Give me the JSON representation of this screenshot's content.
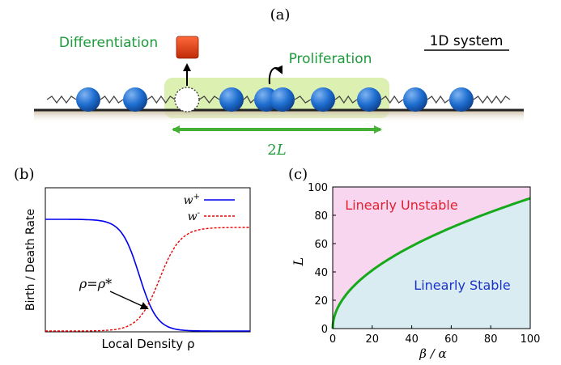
{
  "panel_a": {
    "label": "(a)",
    "differentiation_label": "Differentiation",
    "proliferation_label": "Proliferation",
    "system_label": "1D system",
    "length_label": "2L",
    "colors": {
      "cell": "#1f6fd1",
      "green_text": "#1e9b3c",
      "arrow": "#45b035",
      "highlight": "#d8f0a8",
      "diff_cell": "#d23c10"
    }
  },
  "panel_b": {
    "label": "(b)",
    "ylabel": "Birth / Death Rate",
    "xlabel": "Local Density ρ",
    "legend": {
      "birth": "w+",
      "death": "w-"
    },
    "annotation": "ρ=ρ*",
    "colors": {
      "birth": "#0000ee",
      "death": "#ee0000"
    }
  },
  "panel_c": {
    "label": "(c)",
    "ylabel": "L",
    "xlabel": "β / α",
    "region_unstable": "Linearly Unstable",
    "region_stable": "Linearly Stable",
    "colors": {
      "unstable_bg": "#f9d6f0",
      "stable_bg": "#d8ecf1",
      "curve": "#16a91a",
      "unstable_text": "#e0212f",
      "stable_text": "#1c33c9"
    }
  },
  "chart_data": [
    {
      "type": "line",
      "title": "",
      "xlabel": "Local Density ρ",
      "ylabel": "Birth / Death Rate",
      "ticks": "none",
      "series": [
        {
          "name": "w+",
          "style": "solid",
          "shape": "decreasing sigmoid",
          "high": 1.0,
          "low": 0.0
        },
        {
          "name": "w-",
          "style": "dashed",
          "shape": "increasing sigmoid",
          "high": 0.93,
          "low": 0.0
        }
      ],
      "annotation": {
        "text": "ρ=ρ*",
        "at": "crossing point"
      }
    },
    {
      "type": "area",
      "title": "",
      "xlabel": "β / α",
      "ylabel": "L",
      "xlim": [
        0,
        100
      ],
      "ylim": [
        0,
        100
      ],
      "xticks": [
        0,
        20,
        40,
        60,
        80,
        100
      ],
      "yticks": [
        0,
        20,
        40,
        60,
        80,
        100
      ],
      "boundary": {
        "x": [
          0,
          1,
          2,
          5,
          10,
          20,
          30,
          40,
          50,
          60,
          70,
          80,
          90,
          100
        ],
        "y": [
          0,
          9.2,
          13,
          20.6,
          29.1,
          41.1,
          50.4,
          58.2,
          65.1,
          71.3,
          77.0,
          82.3,
          87.3,
          92.0
        ]
      },
      "regions": {
        "above": "Linearly Unstable",
        "below": "Linearly Stable"
      }
    }
  ]
}
